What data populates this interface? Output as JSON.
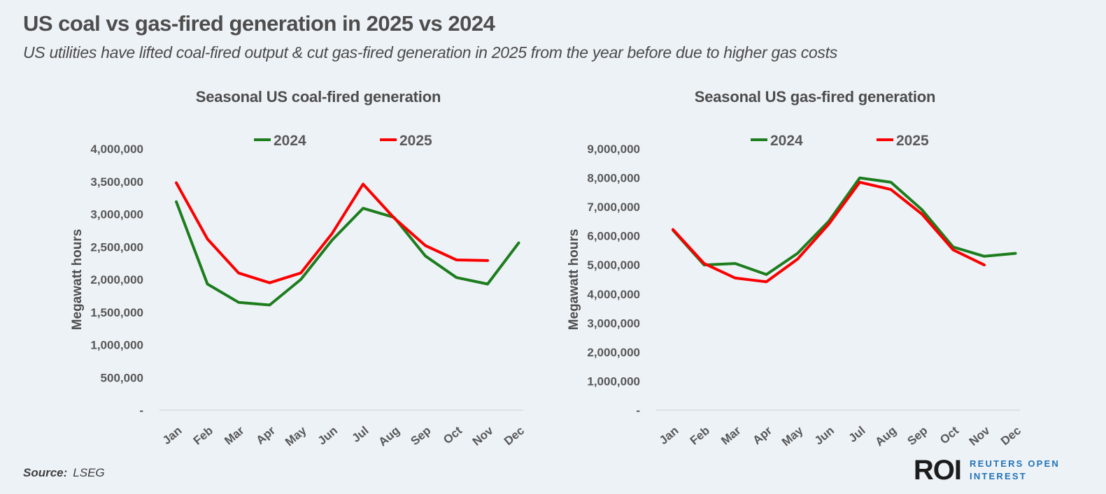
{
  "header": {
    "title": "US coal vs gas-fired generation in 2025 vs 2024",
    "subtitle": "US utilities have lifted coal-fired output & cut gas-fired generation in 2025 from the year before due to higher gas costs"
  },
  "footer": {
    "source_label": "Source:",
    "source_value": "LSEG",
    "logo": {
      "abbr": "ROI",
      "line1": "REUTERS OPEN",
      "line2": "INTEREST",
      "abbr_color": "#1c1c1c",
      "text_color": "#2273b7"
    }
  },
  "chart_data": [
    {
      "type": "line",
      "title": "Seasonal US coal-fired generation",
      "ylabel": "Megawatt hours",
      "ylim": [
        0,
        4000000
      ],
      "ytick_step": 500000,
      "zero_tick_label": "-",
      "grid": false,
      "legend_position": "top",
      "categories": [
        "Jan",
        "Feb",
        "Mar",
        "Apr",
        "May",
        "Jun",
        "Jul",
        "Aug",
        "Sep",
        "Oct",
        "Nov",
        "Dec"
      ],
      "series": [
        {
          "name": "2024",
          "color": "#1d7d1d",
          "values": [
            3190000,
            1930000,
            1650000,
            1610000,
            2000000,
            2600000,
            3090000,
            2950000,
            2360000,
            2030000,
            1930000,
            2560000
          ]
        },
        {
          "name": "2025",
          "color": "#fb0000",
          "values": [
            3480000,
            2620000,
            2100000,
            1950000,
            2100000,
            2700000,
            3460000,
            2940000,
            2520000,
            2300000,
            2290000,
            null
          ]
        }
      ]
    },
    {
      "type": "line",
      "title": "Seasonal US gas-fired generation",
      "ylabel": "Megawatt hours",
      "ylim": [
        0,
        9000000
      ],
      "ytick_step": 1000000,
      "zero_tick_label": "-",
      "grid": false,
      "legend_position": "top",
      "categories": [
        "Jan",
        "Feb",
        "Mar",
        "Apr",
        "May",
        "Jun",
        "Jul",
        "Aug",
        "Sep",
        "Oct",
        "Nov",
        "Dec"
      ],
      "series": [
        {
          "name": "2024",
          "color": "#1d7d1d",
          "values": [
            6200000,
            5000000,
            5050000,
            4670000,
            5400000,
            6500000,
            8000000,
            7850000,
            6900000,
            5620000,
            5300000,
            5400000
          ]
        },
        {
          "name": "2025",
          "color": "#fb0000",
          "values": [
            6220000,
            5050000,
            4550000,
            4420000,
            5200000,
            6400000,
            7850000,
            7600000,
            6750000,
            5520000,
            5000000,
            null
          ]
        }
      ]
    }
  ]
}
